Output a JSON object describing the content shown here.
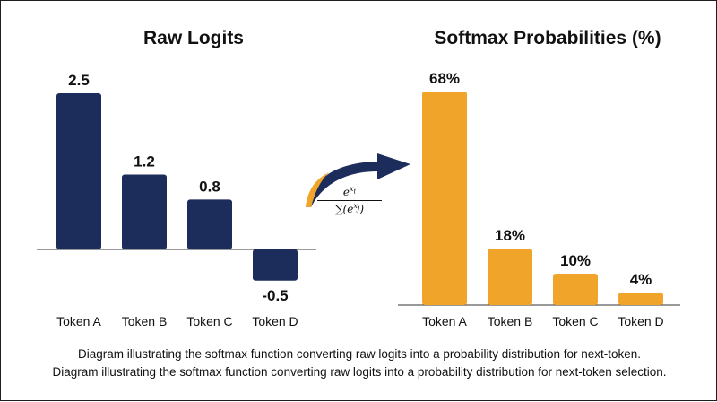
{
  "chart_data": [
    {
      "type": "bar",
      "title": "Raw Logits",
      "categories": [
        "Token A",
        "Token B",
        "Token C",
        "Token D"
      ],
      "values": [
        2.5,
        1.2,
        0.8,
        -0.5
      ],
      "value_labels": [
        "2.5",
        "1.2",
        "0.8",
        "-0.5"
      ],
      "ylim": [
        -0.5,
        2.5
      ],
      "grid": false,
      "color": "#1c2c5b"
    },
    {
      "type": "bar",
      "title": "Softmax Probabilities (%)",
      "categories": [
        "Token A",
        "Token B",
        "Token C",
        "Token D"
      ],
      "values": [
        68,
        18,
        10,
        4
      ],
      "value_labels": [
        "68%",
        "18%",
        "10%",
        "4%"
      ],
      "ylim": [
        0,
        68
      ],
      "grid": false,
      "color": "#f0a42a"
    }
  ],
  "transform": {
    "formula_numerator": "e^{x_i}",
    "formula_denominator": "∑(e^{x_j})",
    "arrow_icon": "curved-arrow-icon",
    "arrow_colors": [
      "#1c2c5b",
      "#f0a42a"
    ]
  },
  "captions": [
    "Diagram illustrating the softmax function converting raw logits into a probability distribution for next-token.",
    "Diagram illustrating the softmax function converting raw logits into a probability distribution for next-token selection."
  ]
}
